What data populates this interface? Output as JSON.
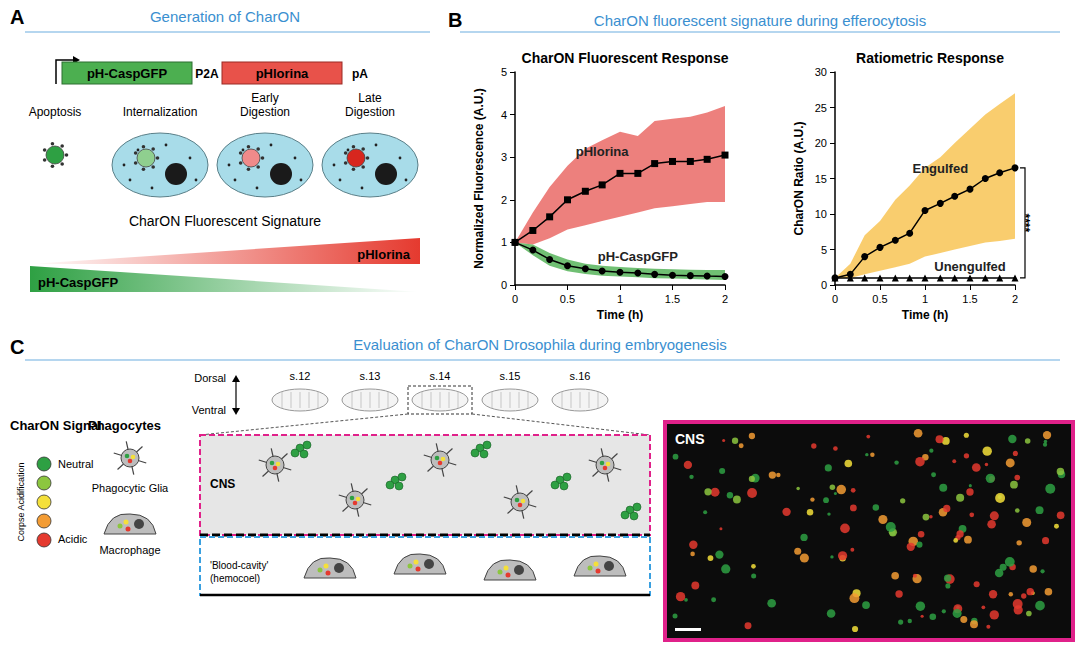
{
  "panels": {
    "A": {
      "letter": "A",
      "title": "Generation of CharON",
      "construct": [
        "pH-CaspGFP",
        "P2A",
        "pHlorina",
        "pA"
      ],
      "stages": [
        "Apoptosis",
        "Internalization",
        "Early Digestion",
        "Late Digestion"
      ],
      "signature_title": "CharON Fluorescent Signature",
      "signature_labels": [
        "pHlorina",
        "pH-CaspGFP"
      ]
    },
    "B": {
      "letter": "B",
      "title": "CharON fluorescent signature during efferocytosis"
    },
    "C": {
      "letter": "C",
      "title": "Evaluation of CharON Drosophila during embryogenesis",
      "orientation_labels": [
        "Dorsal",
        "Ventral"
      ],
      "stages": [
        "s.12",
        "s.13",
        "s.14",
        "s.15",
        "s.16"
      ],
      "signal_title": "CharON Signal",
      "signal_ends": [
        "Neutral",
        "Acidic"
      ],
      "signal_axis": "Corpse Acidification",
      "signal_colors": [
        "#2ea043",
        "#8cc63f",
        "#f4e03a",
        "#f39c34",
        "#e53a2f"
      ],
      "phagocytes_title": "Phagocytes",
      "phagocytes": [
        "Phagocytic Glia",
        "Macrophage"
      ],
      "regions": [
        "CNS",
        "'Blood-cavity' (hemocoel)"
      ],
      "image_label": "CNS"
    }
  },
  "chart_data": [
    {
      "type": "line",
      "title": "CharON Fluorescent Response",
      "xlabel": "Time (h)",
      "ylabel": "Normalized Fluorescence (A.U.)",
      "x": [
        0,
        0.17,
        0.33,
        0.5,
        0.67,
        0.83,
        1,
        1.17,
        1.33,
        1.5,
        1.67,
        1.83,
        2
      ],
      "xlim": [
        0,
        2
      ],
      "xticks": [
        0,
        0.5,
        1,
        1.5,
        2
      ],
      "ylim": [
        0,
        5
      ],
      "yticks": [
        0,
        1,
        2,
        3,
        4,
        5
      ],
      "grid": false,
      "series": [
        {
          "name": "pHlorina",
          "color": "#e9605c",
          "marker": "square",
          "values": [
            1,
            1.28,
            1.6,
            2.0,
            2.2,
            2.35,
            2.62,
            2.62,
            2.85,
            2.9,
            2.9,
            2.95,
            3.05
          ],
          "band_upper": [
            1,
            1.7,
            2.3,
            2.8,
            3.2,
            3.4,
            3.6,
            3.5,
            3.85,
            3.9,
            3.95,
            4.05,
            4.2
          ],
          "band_lower": [
            1,
            0.95,
            1.1,
            1.3,
            1.4,
            1.5,
            1.6,
            1.7,
            1.8,
            1.85,
            1.9,
            1.95,
            1.95
          ]
        },
        {
          "name": "pH-CaspGFP",
          "color": "#4caf50",
          "marker": "circle",
          "values": [
            1,
            0.82,
            0.6,
            0.45,
            0.38,
            0.33,
            0.3,
            0.28,
            0.25,
            0.23,
            0.22,
            0.21,
            0.2
          ],
          "band_upper": [
            1,
            0.95,
            0.75,
            0.6,
            0.5,
            0.45,
            0.42,
            0.4,
            0.38,
            0.37,
            0.36,
            0.35,
            0.35
          ],
          "band_lower": [
            1,
            0.7,
            0.45,
            0.32,
            0.26,
            0.22,
            0.2,
            0.18,
            0.16,
            0.15,
            0.14,
            0.13,
            0.12
          ]
        }
      ]
    },
    {
      "type": "line",
      "title": "Ratiometric Response",
      "xlabel": "Time (h)",
      "ylabel": "CharON Ratio (A.U.)",
      "x": [
        0,
        0.17,
        0.33,
        0.5,
        0.67,
        0.83,
        1,
        1.17,
        1.33,
        1.5,
        1.67,
        1.83,
        2
      ],
      "xlim": [
        0,
        2
      ],
      "xticks": [
        0,
        0.5,
        1,
        1.5,
        2
      ],
      "ylim": [
        0,
        30
      ],
      "yticks": [
        0,
        5,
        10,
        15,
        20,
        25,
        30
      ],
      "grid": false,
      "annotations": [
        "****"
      ],
      "series": [
        {
          "name": "Engulfed",
          "color": "#f7c04a",
          "marker": "circle",
          "values": [
            1,
            1.5,
            4,
            5.3,
            6.3,
            7.3,
            10.5,
            11.5,
            12.5,
            13.5,
            15,
            15.8,
            16.5
          ],
          "band_upper": [
            1,
            3,
            7,
            9,
            12,
            14,
            16.5,
            18,
            20,
            22,
            24,
            25.5,
            27
          ],
          "band_lower": [
            1,
            1,
            1.5,
            2,
            2.5,
            3,
            4,
            4.5,
            5,
            5.5,
            6,
            6.2,
            6.5
          ]
        },
        {
          "name": "Unengulfed",
          "color": "#000000",
          "marker": "triangle",
          "values": [
            1,
            1,
            1,
            1,
            1,
            1,
            1,
            1,
            1,
            1,
            1,
            1,
            1
          ]
        }
      ]
    }
  ]
}
